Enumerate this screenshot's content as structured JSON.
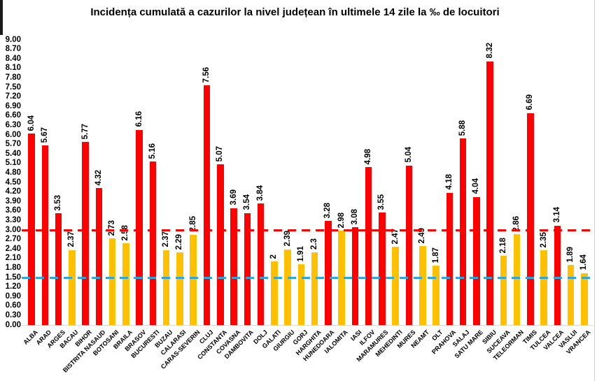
{
  "chart_data": {
    "type": "bar",
    "title": "Incidența cumulată a cazurilor la nivel județean în ultimele 14 zile la ‰ de locuitori",
    "xlabel": "",
    "ylabel": "",
    "ylim": [
      0,
      9
    ],
    "y_step": 0.3,
    "grid": false,
    "legend": false,
    "y_ticks": [
      "0.00",
      "0.30",
      "0.60",
      "0.90",
      "1.20",
      "1.50",
      "1.80",
      "2.10",
      "2.40",
      "2.70",
      "3.00",
      "3.30",
      "3.60",
      "3.90",
      "4.20",
      "4.50",
      "4.80",
      "5.10",
      "5.40",
      "5.70",
      "6.00",
      "6.30",
      "6.60",
      "6.90",
      "7.20",
      "7.50",
      "7.80",
      "8.10",
      "8.40",
      "8.70",
      "9.00"
    ],
    "categories": [
      "ALBA",
      "ARAD",
      "ARGES",
      "BACAU",
      "BIHOR",
      "BISTRITA NASAUD",
      "BOTOSANI",
      "BRAILA",
      "BRASOV",
      "BUCURESTI",
      "BUZAU",
      "CALARASI",
      "CARAS-SEVERIN",
      "CLUJ",
      "CONSTANTA",
      "COVASNA",
      "DAMBOVITA",
      "DOLJ",
      "GALATI",
      "GIURGIU",
      "GORJ",
      "HARGHITA",
      "HUNEDOARA",
      "IALOMITA",
      "IASI",
      "ILFOV",
      "MARAMURES",
      "MEHEDINTI",
      "MURES",
      "NEAMT",
      "OLT",
      "PRAHOVA",
      "SALAJ",
      "SATU MARE",
      "SIBIU",
      "SUCEAVA",
      "TELEORMAN",
      "TIMIS",
      "TULCEA",
      "VALCEA",
      "VASLUI",
      "VRANCEA"
    ],
    "values": [
      6.04,
      5.67,
      3.53,
      2.37,
      5.77,
      4.32,
      2.73,
      2.58,
      6.16,
      5.16,
      2.37,
      2.29,
      2.85,
      7.56,
      5.07,
      3.69,
      3.54,
      3.84,
      2,
      2.39,
      1.91,
      2.3,
      3.28,
      2.98,
      3.08,
      4.98,
      3.55,
      2.47,
      5.04,
      2.49,
      1.87,
      4.18,
      5.88,
      4.04,
      8.32,
      2.18,
      2.86,
      6.69,
      2.35,
      3.14,
      1.89,
      1.64
    ],
    "value_labels": [
      "6.04",
      "5.67",
      "3.53",
      "2.37",
      "5.77",
      "4.32",
      "2.73",
      "2.58",
      "6.16",
      "5.16",
      "2.37",
      "2.29",
      "2.85",
      "7.56",
      "5.07",
      "3.69",
      "3.54",
      "3.84",
      "2",
      "2.39",
      "1.91",
      "2.3",
      "3.28",
      "2.98",
      "3.08",
      "4.98",
      "3.55",
      "2.47",
      "5.04",
      "2.49",
      "1.87",
      "4.18",
      "5.88",
      "4.04",
      "8.32",
      "2.18",
      "2.86",
      "6.69",
      "2.35",
      "3.14",
      "1.89",
      "1.64"
    ],
    "colors": {
      "bar_above_threshold": "#FF0000",
      "bar_below_threshold": "#FFC000",
      "color_threshold": 3.0,
      "axis_line": "#d9d9d9",
      "text": "#000000"
    },
    "threshold_lines": [
      {
        "name": "red-threshold",
        "value": 3.0,
        "color": "#FF0000",
        "style": "dashed"
      },
      {
        "name": "blue-threshold",
        "value": 1.5,
        "color": "#2BA6DE",
        "style": "dashed"
      }
    ]
  }
}
